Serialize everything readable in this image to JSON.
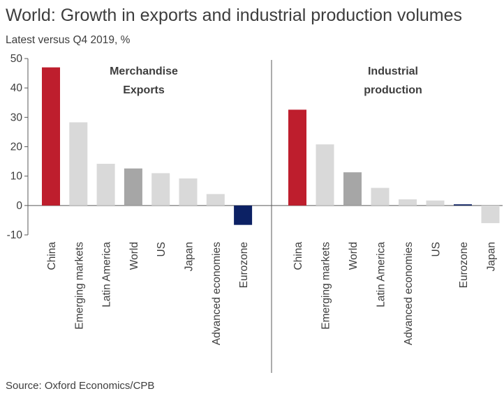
{
  "title": "World: Growth in exports and industrial production volumes",
  "subtitle": "Latest versus Q4 2019, %",
  "source": "Source: Oxford Economics/CPB",
  "colors": {
    "china": "#be1e2d",
    "world": "#a6a6a6",
    "eurozone": "#0c2164",
    "other": "#d9d9d9",
    "axis": "#595959"
  },
  "chart_data": {
    "type": "bar",
    "title": "World: Growth in exports and industrial production volumes",
    "ylabel": "Latest versus Q4 2019, %",
    "ylim": [
      -10,
      50
    ],
    "yticks": [
      50,
      40,
      30,
      20,
      10,
      0,
      -10
    ],
    "panels": [
      {
        "title_lines": [
          "Merchandise",
          "Exports"
        ],
        "categories": [
          "China",
          "Emerging markets",
          "Latin America",
          "World",
          "US",
          "Japan",
          "Advanced economies",
          "Eurozone"
        ],
        "values": [
          47,
          28.3,
          14.2,
          12.6,
          11,
          9.2,
          3.9,
          -6.6
        ],
        "color_keys": [
          "china",
          "other",
          "other",
          "world",
          "other",
          "other",
          "other",
          "eurozone"
        ]
      },
      {
        "title_lines": [
          "Industrial",
          "production"
        ],
        "categories": [
          "China",
          "Emerging markets",
          "World",
          "Latin America",
          "Advanced economies",
          "US",
          "Eurozone",
          "Japan"
        ],
        "values": [
          32.6,
          20.8,
          11.3,
          6,
          2.1,
          1.7,
          0.4,
          -6
        ],
        "color_keys": [
          "china",
          "other",
          "world",
          "other",
          "other",
          "other",
          "eurozone",
          "other"
        ]
      }
    ]
  }
}
